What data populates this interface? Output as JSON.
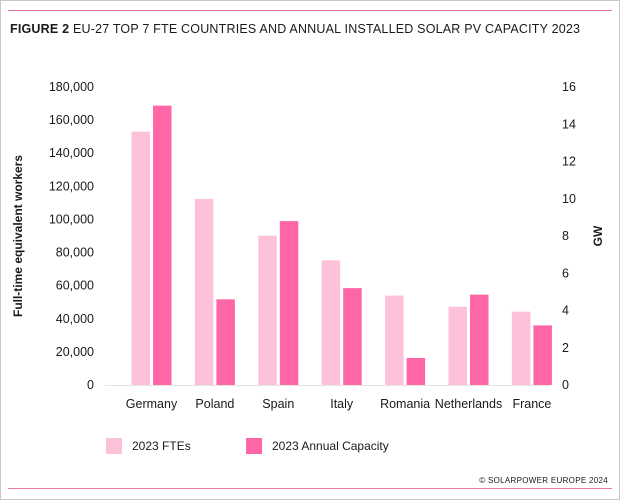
{
  "figure_label": "FIGURE 2",
  "title": "EU-27 TOP 7 FTE COUNTRIES AND ANNUAL INSTALLED SOLAR PV CAPACITY 2023",
  "credit": "© SOLARPOWER EUROPE 2024",
  "colors": {
    "fte": "#fdc2da",
    "capacity": "#ff66a8",
    "rule": "#e87a9a"
  },
  "chart_data": {
    "type": "bar",
    "title": "EU-27 TOP 7 FTE COUNTRIES AND ANNUAL INSTALLED SOLAR PV CAPACITY 2023",
    "categories": [
      "Germany",
      "Poland",
      "Spain",
      "Italy",
      "Romania",
      "Netherlands",
      "France"
    ],
    "series": [
      {
        "name": "2023 FTEs",
        "axis": "left",
        "values": [
          153000,
          112400,
          90200,
          75300,
          54000,
          47300,
          44300
        ]
      },
      {
        "name": "2023 Annual Capacity",
        "axis": "right",
        "values": [
          15.0,
          4.6,
          8.8,
          5.2,
          1.45,
          4.85,
          3.2
        ]
      }
    ],
    "ylabel": "Full-time equivalent workers",
    "ylabel_right": "GW",
    "ylim": [
      0,
      180000
    ],
    "ylim_right": [
      0,
      16
    ],
    "yticks": [
      "0",
      "20,000",
      "40,000",
      "60,000",
      "80,000",
      "100,000",
      "120,000",
      "140,000",
      "160,000",
      "180,000"
    ],
    "yticks_right": [
      "0",
      "2",
      "4",
      "6",
      "8",
      "10",
      "12",
      "14",
      "16"
    ],
    "grid": false,
    "legend": "bottom-left"
  }
}
